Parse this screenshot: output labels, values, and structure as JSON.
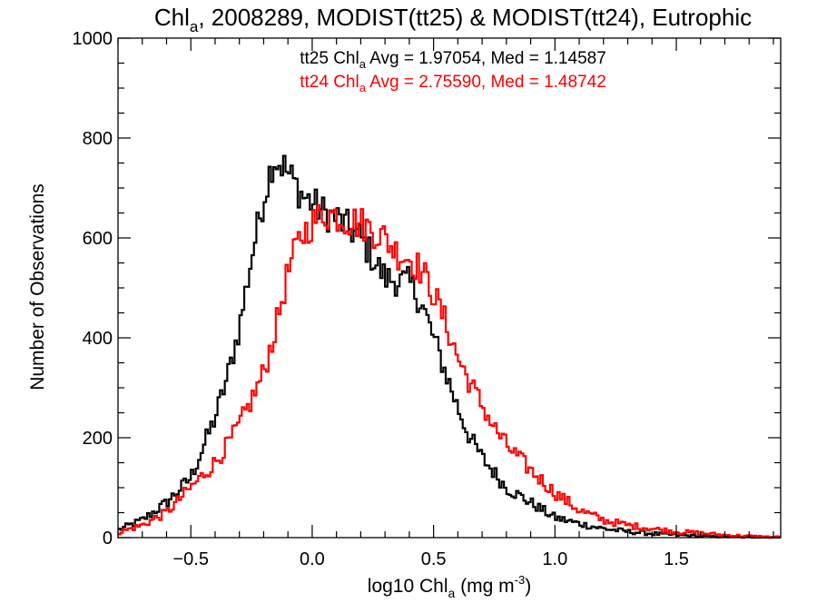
{
  "chart_data": {
    "type": "histogram",
    "title": {
      "base": "Chl",
      "sub": "a",
      "rest": ", 2008289, MODIST(tt25) & MODIST(tt24), Eutrophic"
    },
    "xlabel": {
      "base": "log10 Chl",
      "sub": "a",
      "unit": " (mg m",
      "sup": "-3",
      "close": ")"
    },
    "ylabel": "Number of Observations",
    "xlim": [
      -0.8,
      1.93
    ],
    "ylim": [
      0,
      1000
    ],
    "xticks": [
      -0.5,
      0.0,
      0.5,
      1.0,
      1.5
    ],
    "xtick_labels": [
      "−0.5",
      "0.0",
      "0.5",
      "1.0",
      "1.5"
    ],
    "yticks": [
      0,
      200,
      400,
      600,
      800,
      1000
    ],
    "ytick_labels": [
      "0",
      "200",
      "400",
      "600",
      "800",
      "1000"
    ],
    "x_minor_step": 0.1,
    "y_minor_step": 50,
    "grid": false,
    "bin_width": 0.01,
    "series": [
      {
        "name": "tt25",
        "color": "#000000",
        "stats": {
          "label_pre": "tt25 Chl",
          "sub": "a",
          "label_post": " Avg = 1.97054, Med = 1.14587"
        },
        "points": [
          [
            -0.8,
            15
          ],
          [
            -0.7,
            35
          ],
          [
            -0.6,
            70
          ],
          [
            -0.5,
            120
          ],
          [
            -0.4,
            240
          ],
          [
            -0.35,
            320
          ],
          [
            -0.3,
            420
          ],
          [
            -0.25,
            560
          ],
          [
            -0.2,
            680
          ],
          [
            -0.16,
            760
          ],
          [
            -0.12,
            745
          ],
          [
            -0.08,
            715
          ],
          [
            -0.04,
            685
          ],
          [
            0.0,
            670
          ],
          [
            0.05,
            650
          ],
          [
            0.1,
            640
          ],
          [
            0.15,
            620
          ],
          [
            0.2,
            600
          ],
          [
            0.25,
            560
          ],
          [
            0.3,
            520
          ],
          [
            0.35,
            515
          ],
          [
            0.4,
            510
          ],
          [
            0.45,
            470
          ],
          [
            0.5,
            400
          ],
          [
            0.55,
            330
          ],
          [
            0.6,
            260
          ],
          [
            0.65,
            200
          ],
          [
            0.7,
            160
          ],
          [
            0.8,
            100
          ],
          [
            0.9,
            70
          ],
          [
            1.0,
            40
          ],
          [
            1.1,
            28
          ],
          [
            1.2,
            18
          ],
          [
            1.3,
            12
          ],
          [
            1.4,
            8
          ],
          [
            1.5,
            5
          ],
          [
            1.6,
            3
          ],
          [
            1.7,
            2
          ],
          [
            1.8,
            1
          ],
          [
            1.9,
            0
          ]
        ]
      },
      {
        "name": "tt24",
        "color": "#ff0000",
        "stats": {
          "label_pre": "tt24 Chl",
          "sub": "a",
          "label_post": " Avg = 2.75590, Med = 1.48742"
        },
        "points": [
          [
            -0.8,
            10
          ],
          [
            -0.7,
            25
          ],
          [
            -0.6,
            50
          ],
          [
            -0.5,
            100
          ],
          [
            -0.4,
            150
          ],
          [
            -0.35,
            185
          ],
          [
            -0.3,
            225
          ],
          [
            -0.25,
            275
          ],
          [
            -0.2,
            330
          ],
          [
            -0.15,
            420
          ],
          [
            -0.1,
            530
          ],
          [
            -0.05,
            600
          ],
          [
            0.0,
            630
          ],
          [
            0.05,
            650
          ],
          [
            0.1,
            645
          ],
          [
            0.15,
            635
          ],
          [
            0.2,
            630
          ],
          [
            0.25,
            615
          ],
          [
            0.3,
            600
          ],
          [
            0.35,
            570
          ],
          [
            0.4,
            560
          ],
          [
            0.45,
            535
          ],
          [
            0.5,
            490
          ],
          [
            0.55,
            430
          ],
          [
            0.6,
            360
          ],
          [
            0.65,
            310
          ],
          [
            0.7,
            265
          ],
          [
            0.75,
            220
          ],
          [
            0.8,
            185
          ],
          [
            0.9,
            135
          ],
          [
            1.0,
            90
          ],
          [
            1.1,
            55
          ],
          [
            1.2,
            35
          ],
          [
            1.3,
            25
          ],
          [
            1.4,
            18
          ],
          [
            1.5,
            12
          ],
          [
            1.6,
            9
          ],
          [
            1.7,
            5
          ],
          [
            1.8,
            3
          ],
          [
            1.9,
            1
          ]
        ]
      }
    ]
  }
}
